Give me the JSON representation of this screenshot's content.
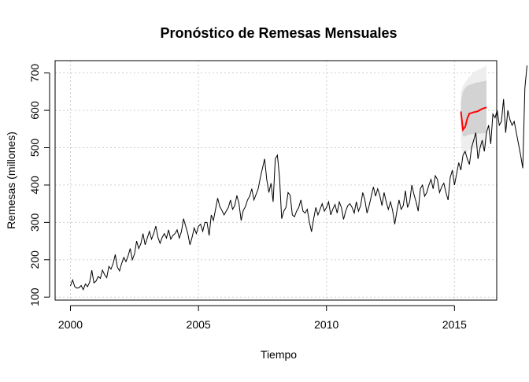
{
  "chart_data": {
    "type": "line",
    "title": "Pronóstico de Remesas Mensuales",
    "xlabel": "Tiempo",
    "ylabel": "Remesas (millones)",
    "xlim": [
      1999.4,
      2016.65
    ],
    "ylim": [
      92,
      733
    ],
    "x_ticks": [
      2000,
      2005,
      2010,
      2015
    ],
    "y_ticks": [
      100,
      200,
      300,
      400,
      500,
      600,
      700
    ],
    "grid": true,
    "colors": {
      "history": "#000000",
      "forecast": "#ff0000",
      "band80": "#d3d3d3",
      "band95": "#eeeeee",
      "grid": "#cfcfcf"
    },
    "history": {
      "start": 2000.0,
      "frequency": 12,
      "values": [
        130,
        146,
        128,
        124,
        125,
        131,
        120,
        135,
        128,
        140,
        172,
        138,
        143,
        155,
        150,
        172,
        160,
        152,
        182,
        175,
        190,
        214,
        180,
        170,
        190,
        206,
        195,
        210,
        230,
        200,
        215,
        250,
        230,
        243,
        270,
        240,
        258,
        276,
        255,
        270,
        290,
        260,
        244,
        260,
        270,
        258,
        280,
        255,
        265,
        270,
        280,
        258,
        275,
        310,
        290,
        270,
        240,
        260,
        285,
        270,
        290,
        295,
        276,
        300,
        300,
        265,
        320,
        305,
        335,
        365,
        342,
        332,
        320,
        330,
        340,
        360,
        335,
        345,
        372,
        350,
        305,
        332,
        342,
        360,
        370,
        390,
        360,
        375,
        390,
        420,
        445,
        470,
        415,
        380,
        405,
        355,
        470,
        480,
        420,
        310,
        330,
        340,
        380,
        372,
        320,
        315,
        330,
        340,
        360,
        330,
        325,
        335,
        300,
        275,
        310,
        340,
        320,
        335,
        350,
        330,
        340,
        355,
        320,
        336,
        348,
        325,
        355,
        340,
        308,
        330,
        345,
        350,
        340,
        325,
        355,
        330,
        345,
        380,
        360,
        325,
        345,
        370,
        395,
        370,
        390,
        372,
        345,
        380,
        355,
        335,
        355,
        332,
        295,
        330,
        360,
        335,
        345,
        385,
        340,
        355,
        400,
        375,
        355,
        330,
        390,
        400,
        370,
        380,
        400,
        415,
        390,
        425,
        415,
        380,
        395,
        405,
        380,
        360,
        420,
        440,
        400,
        430,
        460,
        440,
        480,
        490,
        470,
        455,
        500,
        520,
        540,
        470,
        500,
        520,
        490,
        540,
        560,
        510,
        590,
        580,
        600,
        560,
        570,
        630,
        540,
        600,
        575,
        560,
        570,
        540,
        510,
        480,
        445,
        660,
        720
      ]
    },
    "forecast": {
      "x": [
        2015.25,
        2015.33,
        2015.42,
        2015.5,
        2015.58,
        2015.67,
        2015.75,
        2015.83,
        2015.92,
        2016.0,
        2016.08,
        2016.17,
        2016.25
      ],
      "mean": [
        597,
        548,
        556,
        578,
        591,
        593,
        595,
        596,
        598,
        601,
        604,
        606,
        608
      ],
      "lo80": [
        560,
        530,
        530,
        533,
        535,
        536,
        537,
        537,
        538,
        538,
        538,
        539,
        540
      ],
      "hi80": [
        625,
        650,
        660,
        665,
        668,
        670,
        672,
        674,
        675,
        676,
        677,
        678,
        680
      ],
      "lo95": [
        520,
        478,
        482,
        490,
        495,
        497,
        498,
        499,
        500,
        500,
        501,
        502,
        503
      ],
      "hi95": [
        650,
        665,
        675,
        683,
        690,
        695,
        700,
        705,
        708,
        710,
        713,
        716,
        720
      ]
    }
  }
}
